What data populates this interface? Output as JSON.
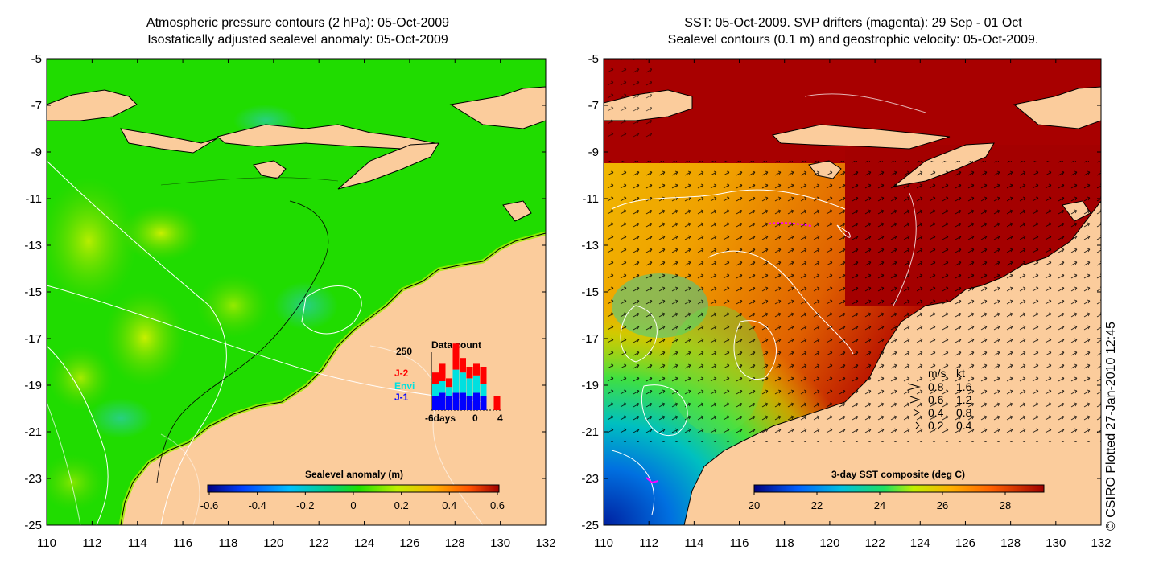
{
  "left_panel": {
    "title_line1": "Atmospheric pressure contours (2 hPa): 05-Oct-2009",
    "title_line2": "Isostatically adjusted sealevel anomaly: 05-Oct-2009",
    "y_ticks": [
      "-5",
      "-7",
      "-9",
      "-11",
      "-13",
      "-15",
      "-17",
      "-19",
      "-21",
      "-23",
      "-25"
    ],
    "x_ticks": [
      "110",
      "112",
      "114",
      "116",
      "118",
      "120",
      "122",
      "124",
      "126",
      "128",
      "130",
      "132"
    ],
    "colorbar": {
      "title": "Sealevel anomaly (m)",
      "labels": [
        "-0.6",
        "-0.4",
        "-0.2",
        "0",
        "0.2",
        "0.4",
        "0.6"
      ]
    },
    "data_count": {
      "title": "Data count",
      "max_label": "250",
      "legend": [
        "J-2",
        "Envi",
        "J-1"
      ],
      "legend_colors": [
        "#ff0000",
        "#00e0e0",
        "#0000ff"
      ],
      "x_labels": [
        "-6days",
        "0",
        "4"
      ],
      "bars": [
        {
          "j1": 0.25,
          "envi": 0.2,
          "j2": 0.2
        },
        {
          "j1": 0.3,
          "envi": 0.2,
          "j2": 0.3
        },
        {
          "j1": 0.25,
          "envi": 0.15,
          "j2": 0.15
        },
        {
          "j1": 0.3,
          "envi": 0.4,
          "j2": 0.45
        },
        {
          "j1": 0.3,
          "envi": 0.35,
          "j2": 0.25
        },
        {
          "j1": 0.25,
          "envi": 0.3,
          "j2": 0.2
        },
        {
          "j1": 0.3,
          "envi": 0.3,
          "j2": 0.2
        },
        {
          "j1": 0.25,
          "envi": 0.2,
          "j2": 0.3
        },
        {
          "j1": 0.0,
          "envi": 0.0,
          "j2": 0.0
        },
        {
          "j1": 0.0,
          "envi": 0.0,
          "j2": 0.25
        }
      ]
    }
  },
  "right_panel": {
    "title_line1": "SST: 05-Oct-2009. SVP drifters (magenta): 29 Sep - 01 Oct",
    "title_line2": "Sealevel contours (0.1 m) and geostrophic velocity: 05-Oct-2009.",
    "y_ticks": [
      "-5",
      "-7",
      "-9",
      "-11",
      "-13",
      "-15",
      "-17",
      "-19",
      "-21",
      "-23",
      "-25"
    ],
    "x_ticks": [
      "110",
      "112",
      "114",
      "116",
      "118",
      "120",
      "122",
      "124",
      "126",
      "128",
      "130",
      "132"
    ],
    "colorbar": {
      "title": "3-day SST composite (deg C)",
      "labels": [
        "20",
        "22",
        "24",
        "26",
        "28"
      ]
    },
    "velocity_legend": {
      "header_ms": "m/s",
      "header_kt": "kt",
      "rows": [
        {
          "ms": "0.8",
          "kt": "1.6"
        },
        {
          "ms": "0.6",
          "kt": "1.2"
        },
        {
          "ms": "0.4",
          "kt": "0.8"
        },
        {
          "ms": "0.2",
          "kt": "0.4"
        }
      ]
    }
  },
  "credit": "© CSIRO Plotted 27-Jan-2010 12:45",
  "colors": {
    "land": "#fbcc9c",
    "ocean_left": "#22dd00",
    "sst_warm": "#a80000",
    "sst_orange": "#f08a00"
  }
}
